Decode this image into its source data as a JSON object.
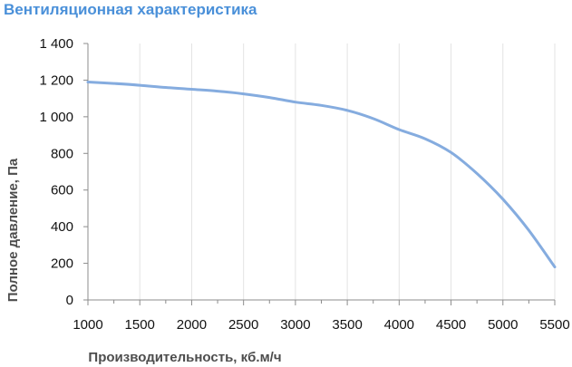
{
  "chart_data": {
    "type": "line",
    "title": "Вентиляционная характеристика",
    "xlabel": "Производительность, кб.м/ч",
    "ylabel": "Полное давление, Па",
    "xlim": [
      1000,
      5500
    ],
    "ylim": [
      0,
      1400
    ],
    "x_ticks": [
      1000,
      1500,
      2000,
      2500,
      3000,
      3500,
      4000,
      4500,
      5000,
      5500
    ],
    "x_tick_labels": [
      "1000",
      "1500",
      "2000",
      "2500",
      "3000",
      "3500",
      "4000",
      "4500",
      "5000",
      "5500"
    ],
    "y_ticks": [
      0,
      200,
      400,
      600,
      800,
      1000,
      1200,
      1400
    ],
    "y_tick_labels": [
      "0",
      "200",
      "400",
      "600",
      "800",
      "1 000",
      "1 200",
      "1 400"
    ],
    "x_minor_step": 250,
    "grid": {
      "vertical": true,
      "horizontal": false
    },
    "series": [
      {
        "color": "#85acdf",
        "x": [
          1000,
          1250,
          1500,
          1750,
          2000,
          2250,
          2500,
          2750,
          3000,
          3250,
          3500,
          3750,
          4000,
          4250,
          4500,
          4750,
          5000,
          5250,
          5500
        ],
        "y": [
          1190,
          1182,
          1172,
          1160,
          1150,
          1140,
          1125,
          1105,
          1080,
          1062,
          1035,
          990,
          930,
          880,
          805,
          690,
          550,
          380,
          180
        ]
      }
    ]
  }
}
